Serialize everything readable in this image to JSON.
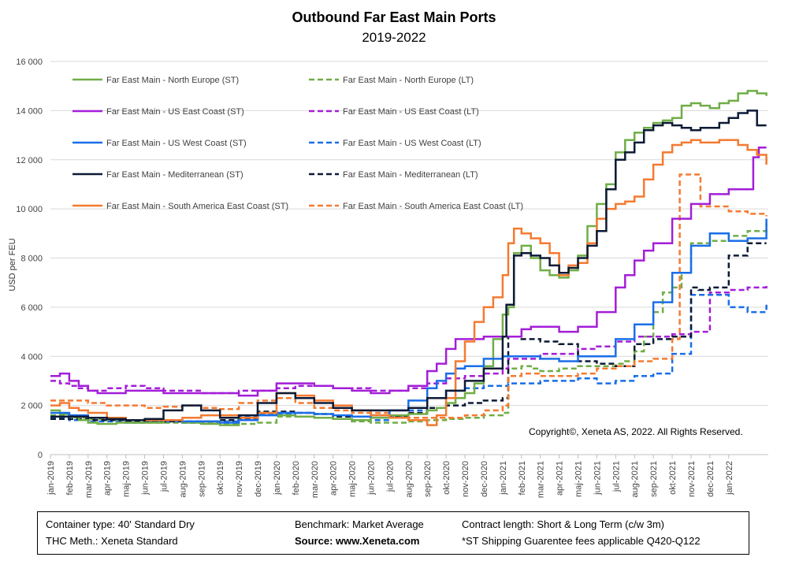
{
  "title": "Outbound Far East Main Ports",
  "subtitle": "2019-2022",
  "copyright": "Copyright©, Xeneta AS, 2022. All Rights Reserved.",
  "footer": {
    "container_type": "Container type: 40' Standard Dry",
    "thc_method": "THC Meth.: Xeneta Standard",
    "benchmark": "Benchmark: Market Average",
    "source": "Source: www.Xeneta.com",
    "contract_length": "Contract length: Short & Long Term (c/w 3m)",
    "note": "*ST Shipping Guarentee fees applicable Q420-Q122"
  },
  "chart_data": {
    "type": "line",
    "ylabel": "USD per FEU",
    "ylim": [
      0,
      16000
    ],
    "yticks": [
      0,
      2000,
      4000,
      6000,
      8000,
      10000,
      12000,
      14000,
      16000
    ],
    "ytick_labels": [
      "0",
      "2 000",
      "4 000",
      "6 000",
      "8 000",
      "10 000",
      "12 000",
      "14 000",
      "16 000"
    ],
    "grid": "horizontal",
    "legend_position": "top-left",
    "x_labels": [
      "jan-2019",
      "feb-2019",
      "mar-2019",
      "apr-2019",
      "maj-2019",
      "jun-2019",
      "jul-2019",
      "aug-2019",
      "sep-2019",
      "okt-2019",
      "nov-2019",
      "dec-2019",
      "jan-2020",
      "feb-2020",
      "mar-2020",
      "apr-2020",
      "maj-2020",
      "jun-2020",
      "jul-2020",
      "aug-2020",
      "sep-2020",
      "okt-2020",
      "nov-2020",
      "dec-2020",
      "jan-2021",
      "feb-2021",
      "mar-2021",
      "apr-2021",
      "maj-2021",
      "jun-2021",
      "jul-2021",
      "aug-2021",
      "sep-2021",
      "okt-2021",
      "nov-2021",
      "dec-2021",
      "jan-2022"
    ],
    "x_domain": [
      0,
      38.1
    ],
    "series": [
      {
        "name": "Far East Main - North Europe (ST)",
        "color": "#70ad47",
        "dash": false,
        "x": [
          0,
          0.5,
          1,
          1.5,
          2,
          2.5,
          3,
          3.5,
          4,
          5,
          6,
          7,
          8,
          9,
          10,
          11,
          12,
          13,
          14,
          15,
          16,
          17,
          18,
          19,
          20,
          20.5,
          21,
          21.5,
          22,
          22.5,
          23,
          23.5,
          24,
          24.3,
          24.6,
          25,
          25.5,
          26,
          26.5,
          27,
          27.5,
          28,
          28.5,
          29,
          29.5,
          30,
          30.5,
          31,
          31.5,
          32,
          32.5,
          33,
          33.5,
          34,
          34.5,
          35,
          35.5,
          36,
          36.5,
          37,
          37.5,
          38
        ],
        "y": [
          1800,
          1650,
          1550,
          1400,
          1300,
          1250,
          1250,
          1300,
          1300,
          1300,
          1400,
          1300,
          1250,
          1200,
          1500,
          1700,
          1600,
          1550,
          1500,
          1450,
          1400,
          1500,
          1600,
          1650,
          1800,
          1900,
          2100,
          2300,
          2500,
          2900,
          3600,
          4700,
          5700,
          6000,
          8200,
          8500,
          8000,
          7500,
          7300,
          7200,
          7500,
          8100,
          9300,
          10200,
          11000,
          12300,
          12800,
          13100,
          13300,
          13500,
          13600,
          13700,
          14200,
          14300,
          14200,
          14100,
          14300,
          14400,
          14700,
          14800,
          14700,
          14600
        ]
      },
      {
        "name": "Far East Main - North Europe (LT)",
        "color": "#70ad47",
        "dash": true,
        "x": [
          0,
          1,
          2,
          3,
          4,
          5,
          6,
          7,
          8,
          9,
          10,
          11,
          12,
          13,
          14,
          15,
          16,
          17,
          18,
          19,
          20,
          21,
          22,
          23,
          24,
          24.3,
          25,
          25.5,
          26,
          27,
          28,
          29,
          30,
          30.5,
          31,
          31.5,
          32,
          32.5,
          33,
          33.5,
          34,
          35,
          36,
          37,
          38
        ],
        "y": [
          1600,
          1500,
          1450,
          1400,
          1300,
          1300,
          1300,
          1300,
          1300,
          1250,
          1250,
          1300,
          1550,
          1550,
          1500,
          1450,
          1350,
          1300,
          1300,
          1350,
          1400,
          1450,
          1500,
          1600,
          1700,
          3500,
          3600,
          3500,
          3400,
          3500,
          3600,
          3600,
          3700,
          3800,
          4200,
          4800,
          5800,
          6600,
          6800,
          7400,
          8600,
          8700,
          8900,
          9100,
          9400
        ]
      },
      {
        "name": "Far East Main - US East Coast (ST)",
        "color": "#a31ed8",
        "dash": false,
        "x": [
          0,
          0.5,
          1,
          1.5,
          2,
          2.5,
          3,
          4,
          5,
          6,
          7,
          8,
          9,
          10,
          11,
          12,
          13,
          14,
          15,
          16,
          17,
          18,
          19,
          20,
          20.5,
          21,
          21.5,
          22,
          23,
          24,
          25,
          25.5,
          26,
          27,
          28,
          29,
          30,
          30.5,
          31,
          31.5,
          32,
          33,
          34,
          35,
          36,
          37,
          37.3,
          37.6,
          38
        ],
        "y": [
          3200,
          3300,
          3000,
          2800,
          2600,
          2500,
          2500,
          2600,
          2600,
          2500,
          2500,
          2500,
          2500,
          2400,
          2600,
          2900,
          2900,
          2800,
          2700,
          2600,
          2500,
          2600,
          2800,
          3400,
          3700,
          4300,
          4700,
          4700,
          4800,
          4800,
          5100,
          5200,
          5200,
          5000,
          5200,
          5800,
          6800,
          7300,
          7900,
          8300,
          8600,
          9600,
          10200,
          10600,
          10800,
          10800,
          12100,
          12500,
          12500
        ]
      },
      {
        "name": "Far East Main - US East Coast (LT)",
        "color": "#a31ed8",
        "dash": true,
        "x": [
          0,
          0.5,
          1,
          1.5,
          2,
          3,
          4,
          5,
          6,
          7,
          8,
          9,
          10,
          11,
          12,
          13,
          14,
          15,
          16,
          17,
          18,
          19,
          20,
          21,
          22,
          23,
          24,
          24.3,
          25,
          26,
          27,
          28,
          29,
          30,
          31,
          32,
          33,
          34,
          35,
          36,
          37,
          38
        ],
        "y": [
          3000,
          2900,
          2800,
          2700,
          2600,
          2700,
          2800,
          2700,
          2600,
          2600,
          2500,
          2500,
          2600,
          2600,
          2700,
          2800,
          2800,
          2700,
          2700,
          2600,
          2600,
          2700,
          2900,
          3100,
          3200,
          3300,
          3500,
          3900,
          3900,
          4100,
          4100,
          4300,
          4400,
          4600,
          4800,
          4800,
          4900,
          5000,
          6600,
          6700,
          6800,
          6900
        ]
      },
      {
        "name": "Far East Main - US West Coast (ST)",
        "color": "#1a6ee8",
        "dash": false,
        "x": [
          0,
          1,
          2,
          3,
          4,
          5,
          6,
          7,
          8,
          9,
          10,
          11,
          12,
          13,
          14,
          15,
          16,
          17,
          18,
          19,
          20,
          20.5,
          21,
          21.5,
          22,
          23,
          24,
          25,
          26,
          27,
          28,
          29,
          30,
          31,
          32,
          33,
          34,
          35,
          36,
          37,
          38
        ],
        "y": [
          1700,
          1600,
          1500,
          1450,
          1400,
          1400,
          1400,
          1350,
          1350,
          1300,
          1400,
          1600,
          1700,
          1700,
          1650,
          1600,
          1550,
          1600,
          1800,
          2200,
          2700,
          3000,
          3300,
          3500,
          3600,
          3900,
          4000,
          4000,
          3900,
          3800,
          4000,
          4000,
          4700,
          5300,
          6200,
          7400,
          8500,
          9000,
          8700,
          8800,
          9600
        ]
      },
      {
        "name": "Far East Main - US West Coast (LT)",
        "color": "#1a6ee8",
        "dash": true,
        "x": [
          0,
          1,
          2,
          3,
          4,
          5,
          6,
          7,
          8,
          9,
          10,
          11,
          12,
          13,
          14,
          15,
          16,
          17,
          18,
          19,
          20,
          21,
          22,
          23,
          24,
          24.3,
          25,
          26,
          27,
          28,
          29,
          30,
          31,
          32,
          33,
          34,
          35,
          36,
          37,
          38
        ],
        "y": [
          1500,
          1400,
          1350,
          1350,
          1300,
          1350,
          1350,
          1300,
          1350,
          1350,
          1550,
          1650,
          1650,
          1550,
          1500,
          1450,
          1400,
          1400,
          1550,
          1800,
          2300,
          2600,
          2700,
          2800,
          2800,
          2900,
          2900,
          3000,
          3000,
          3100,
          2900,
          3000,
          3200,
          3300,
          4100,
          6500,
          6500,
          6000,
          5800,
          6100
        ]
      },
      {
        "name": "Far East Main - Mediterranean (ST)",
        "color": "#0c1a35",
        "dash": false,
        "x": [
          0,
          1,
          2,
          3,
          4,
          5,
          6,
          7,
          8,
          9,
          10,
          11,
          12,
          13,
          14,
          15,
          16,
          17,
          18,
          19,
          20,
          21,
          22,
          23,
          24,
          24.2,
          24.6,
          25,
          25.5,
          26,
          26.5,
          27,
          27.5,
          28,
          28.5,
          29,
          29.5,
          30,
          30.5,
          31,
          31.5,
          32,
          32.5,
          33,
          33.5,
          34,
          34.5,
          35,
          35.5,
          36,
          36.5,
          37,
          37.5,
          38
        ],
        "y": [
          1550,
          1550,
          1500,
          1450,
          1400,
          1450,
          1800,
          2000,
          1800,
          1500,
          1600,
          2100,
          2500,
          2300,
          2100,
          1900,
          1800,
          1800,
          1800,
          1900,
          2300,
          2600,
          3000,
          3500,
          4800,
          6100,
          8100,
          8200,
          8100,
          8000,
          7700,
          7400,
          7600,
          8000,
          8500,
          9100,
          10800,
          12000,
          12300,
          12700,
          13200,
          13400,
          13500,
          13400,
          13300,
          13200,
          13300,
          13300,
          13500,
          13700,
          13900,
          14000,
          13400,
          13400
        ]
      },
      {
        "name": "Far East Main - Mediterranean (LT)",
        "color": "#0c1a35",
        "dash": true,
        "x": [
          0,
          1,
          2,
          3,
          4,
          5,
          6,
          7,
          8,
          9,
          10,
          11,
          12,
          13,
          14,
          15,
          16,
          17,
          18,
          19,
          20,
          21,
          22,
          23,
          24,
          24.3,
          25,
          26,
          27,
          28,
          29,
          30,
          31,
          32,
          33,
          34,
          34.4,
          35,
          36,
          37,
          38
        ],
        "y": [
          1450,
          1450,
          1400,
          1400,
          1350,
          1350,
          1350,
          1350,
          1350,
          1400,
          1450,
          1750,
          1750,
          1700,
          1650,
          1550,
          1550,
          1500,
          1550,
          1700,
          1900,
          2000,
          2100,
          2200,
          2300,
          4800,
          4700,
          4600,
          4500,
          3800,
          3700,
          3600,
          4500,
          4700,
          4800,
          6800,
          6700,
          6800,
          8100,
          8600,
          8600
        ]
      },
      {
        "name": "Far East Main - South America East Coast (ST)",
        "color": "#f47a30",
        "dash": false,
        "x": [
          0,
          0.5,
          1,
          1.5,
          2,
          3,
          4,
          5,
          6,
          7,
          8,
          9,
          10,
          11,
          12,
          13,
          14,
          15,
          16,
          17,
          18,
          19,
          20,
          20.5,
          21,
          21.5,
          22,
          22.5,
          23,
          23.5,
          24,
          24.3,
          24.6,
          25,
          25.5,
          26,
          26.5,
          27,
          27.5,
          28,
          28.5,
          29,
          29.5,
          30,
          30.5,
          31,
          31.5,
          32,
          32.5,
          33,
          33.5,
          34,
          34.5,
          35,
          35.5,
          36,
          36.5,
          37,
          37.5,
          38
        ],
        "y": [
          2000,
          2100,
          1900,
          1800,
          1700,
          1500,
          1400,
          1400,
          1400,
          1500,
          1600,
          1600,
          1500,
          1700,
          2500,
          2400,
          2200,
          2000,
          1800,
          1600,
          1500,
          1400,
          1200,
          1600,
          2300,
          3800,
          4600,
          5400,
          6000,
          6400,
          7300,
          8600,
          9200,
          9000,
          8800,
          8600,
          8200,
          7300,
          7700,
          7800,
          8600,
          9600,
          10000,
          10200,
          10300,
          10500,
          11200,
          11800,
          12300,
          12600,
          12700,
          12800,
          12700,
          12700,
          12800,
          12800,
          12600,
          12400,
          12200,
          11800
        ]
      },
      {
        "name": "Far East Main - South America East Coast (LT)",
        "color": "#f47a30",
        "dash": true,
        "x": [
          0,
          1,
          2,
          3,
          4,
          5,
          6,
          7,
          8,
          9,
          10,
          11,
          12,
          13,
          14,
          15,
          16,
          17,
          18,
          19,
          20,
          21,
          22,
          23,
          24,
          24.3,
          25,
          26,
          27,
          28,
          29,
          30,
          31,
          32,
          33,
          33.4,
          34,
          34.5,
          35,
          36,
          37,
          38
        ],
        "y": [
          2200,
          2200,
          2100,
          2000,
          2000,
          1900,
          1950,
          2000,
          1900,
          1850,
          2100,
          2200,
          2300,
          2100,
          1900,
          1800,
          1700,
          1700,
          1600,
          1500,
          1500,
          1500,
          1600,
          1800,
          2000,
          3200,
          3300,
          3200,
          3200,
          3300,
          3500,
          3600,
          3800,
          3900,
          4700,
          11400,
          11400,
          10100,
          10100,
          9900,
          9800,
          9700
        ]
      }
    ]
  }
}
